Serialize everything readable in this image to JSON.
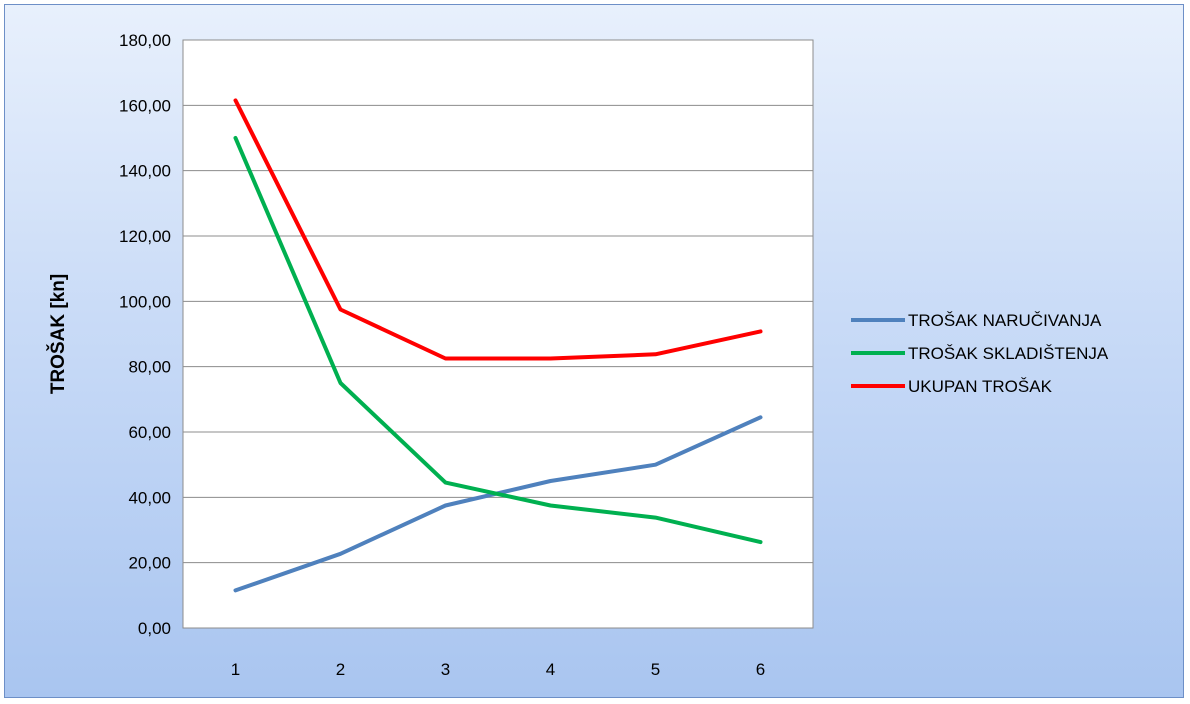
{
  "chart_data": {
    "type": "line",
    "title": "",
    "xlabel": "",
    "ylabel": "TROŠAK [kn]",
    "x": [
      1,
      2,
      3,
      4,
      5,
      6
    ],
    "x_tick_labels": [
      "1",
      "2",
      "3",
      "4",
      "5",
      "6"
    ],
    "ylim": [
      0,
      180
    ],
    "y_ticks": [
      0,
      20,
      40,
      60,
      80,
      100,
      120,
      140,
      160,
      180
    ],
    "y_tick_labels": [
      "0,00",
      "20,00",
      "40,00",
      "60,00",
      "80,00",
      "100,00",
      "120,00",
      "140,00",
      "160,00",
      "180,00"
    ],
    "grid": "horizontal",
    "legend_position": "right",
    "series": [
      {
        "name": "TROŠAK NARUČIVANJA",
        "color": "#4f81bd",
        "values": [
          11.5,
          22.7,
          37.5,
          45.0,
          50.0,
          64.5
        ]
      },
      {
        "name": "TROŠAK SKLADIŠTENJA",
        "color": "#00b050",
        "values": [
          150.0,
          75.0,
          44.5,
          37.5,
          33.8,
          26.3
        ]
      },
      {
        "name": "UKUPAN TROŠAK",
        "color": "#ff0000",
        "values": [
          161.5,
          97.5,
          82.5,
          82.5,
          83.8,
          90.8
        ]
      }
    ]
  }
}
